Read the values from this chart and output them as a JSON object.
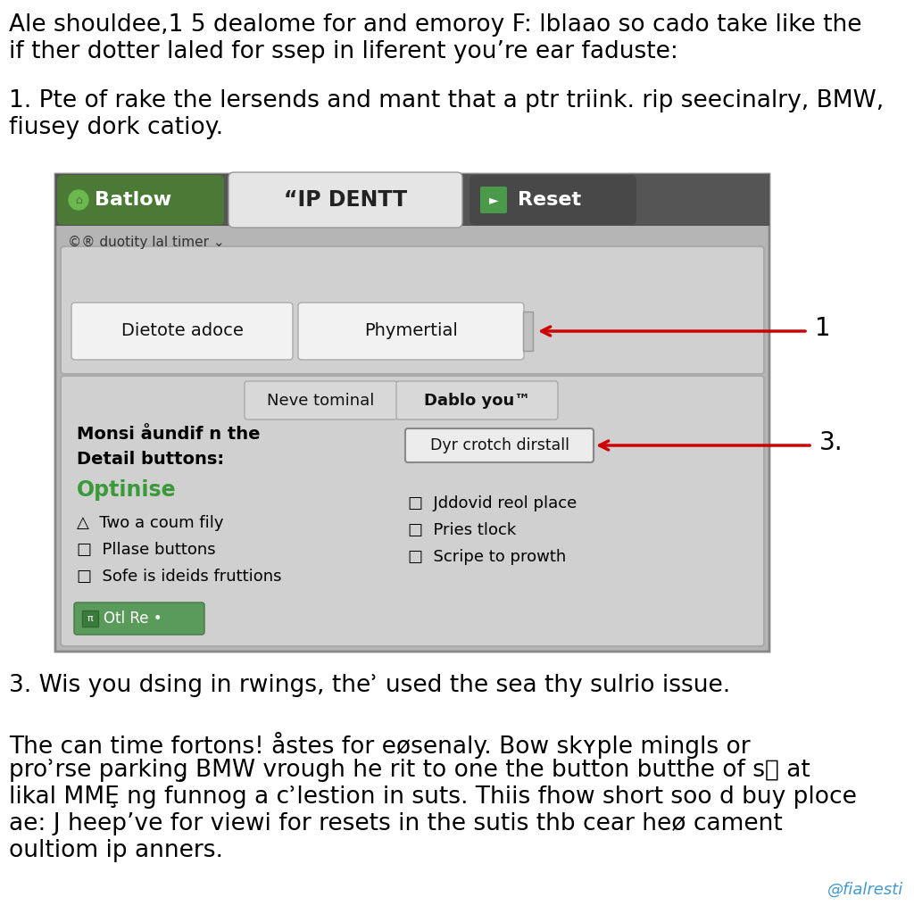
{
  "bg_color": "#ffffff",
  "para1_line1": "Ale shouldee,1 5 dealome for and emoroy F: lblaao so cado take like the",
  "para1_line2": "if ther dotter laled for ssep in liferent you’re ear faduste:",
  "para2_line1": "1. Pte of rake the lersends and mant that a ptr triink. rip seecinalry, BMW,",
  "para2_line2": "fiusey dork catioy.",
  "ui_subtitle": "©® duotity lal timer ⌄",
  "ui_tab1_text": "Dietote adoce",
  "ui_tab2_text": "Phymertial",
  "ui_section2_left_bold1": "Monsi åundif n the",
  "ui_section2_left_bold2": "Detail buttons:",
  "ui_section2_green": "Optinise",
  "ui_section2_tab1": "Neve tominal",
  "ui_section2_tab2": "Dablo you™",
  "ui_section2_btn": "Dyr crotch dirstall",
  "ui_check1": "△  Two a coum fily",
  "ui_check2": "□  Pllase buttons",
  "ui_check3": "□  Sofe is ideids fruttions",
  "ui_check4": "□  Jddovid reol place",
  "ui_check5": "□  Pries tlock",
  "ui_check6": "□  Scripe to prowth",
  "ui_bottom_icon": "▣",
  "ui_bottom_text": "Otl Re •",
  "arrow1_label": "1",
  "arrow3_label": "3.",
  "para3_line1": "3. Wis you dsing in rwings, theʾ used the sea thy sulrio issue.",
  "para4_line1": "The can time fortons! åstes for eøsenaly. Bow skʏple mingls or",
  "para4_line2": "proʾrse parkinģ BMW vrough he rit to one the button butthe of s୪ at",
  "para4_line3": "likal MMȨ ng funnog a cʾlestion in suts. Thiis fhow short soo d buy ploce",
  "para4_line4": "ae: J heep’ve for viewi for resets in the sutis thb cear heø cament",
  "para4_line5": "oultiom ip anners.",
  "watermark": "@fialresti"
}
